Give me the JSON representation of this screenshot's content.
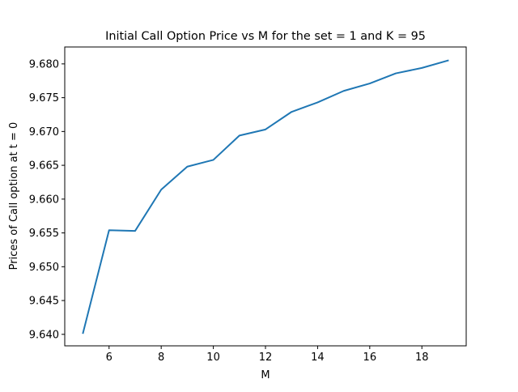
{
  "chart_data": {
    "type": "line",
    "title": "Initial Call Option Price vs M for the set = 1 and K = 95",
    "xlabel": "M",
    "ylabel": "Prices of Call option at t = 0",
    "xlim": [
      4.3,
      19.7
    ],
    "ylim": [
      9.6383,
      9.6825
    ],
    "x_ticks": [
      6,
      8,
      10,
      12,
      14,
      16,
      18
    ],
    "x_tick_labels": [
      "6",
      "8",
      "10",
      "12",
      "14",
      "16",
      "18"
    ],
    "y_ticks": [
      9.64,
      9.645,
      9.65,
      9.655,
      9.66,
      9.665,
      9.67,
      9.675,
      9.68
    ],
    "y_tick_labels": [
      "9.640",
      "9.645",
      "9.650",
      "9.655",
      "9.660",
      "9.665",
      "9.670",
      "9.675",
      "9.680"
    ],
    "grid": false,
    "legend": "none",
    "series": [
      {
        "color": "#1f77b4",
        "x": [
          5,
          6,
          7,
          8,
          9,
          10,
          11,
          12,
          13,
          14,
          15,
          16,
          17,
          18,
          19
        ],
        "y": [
          9.6402,
          9.6554,
          9.6553,
          9.6614,
          9.6648,
          9.6658,
          9.6694,
          9.6703,
          9.6729,
          9.6743,
          9.676,
          9.6771,
          9.6786,
          9.6794,
          9.6805
        ]
      }
    ]
  }
}
